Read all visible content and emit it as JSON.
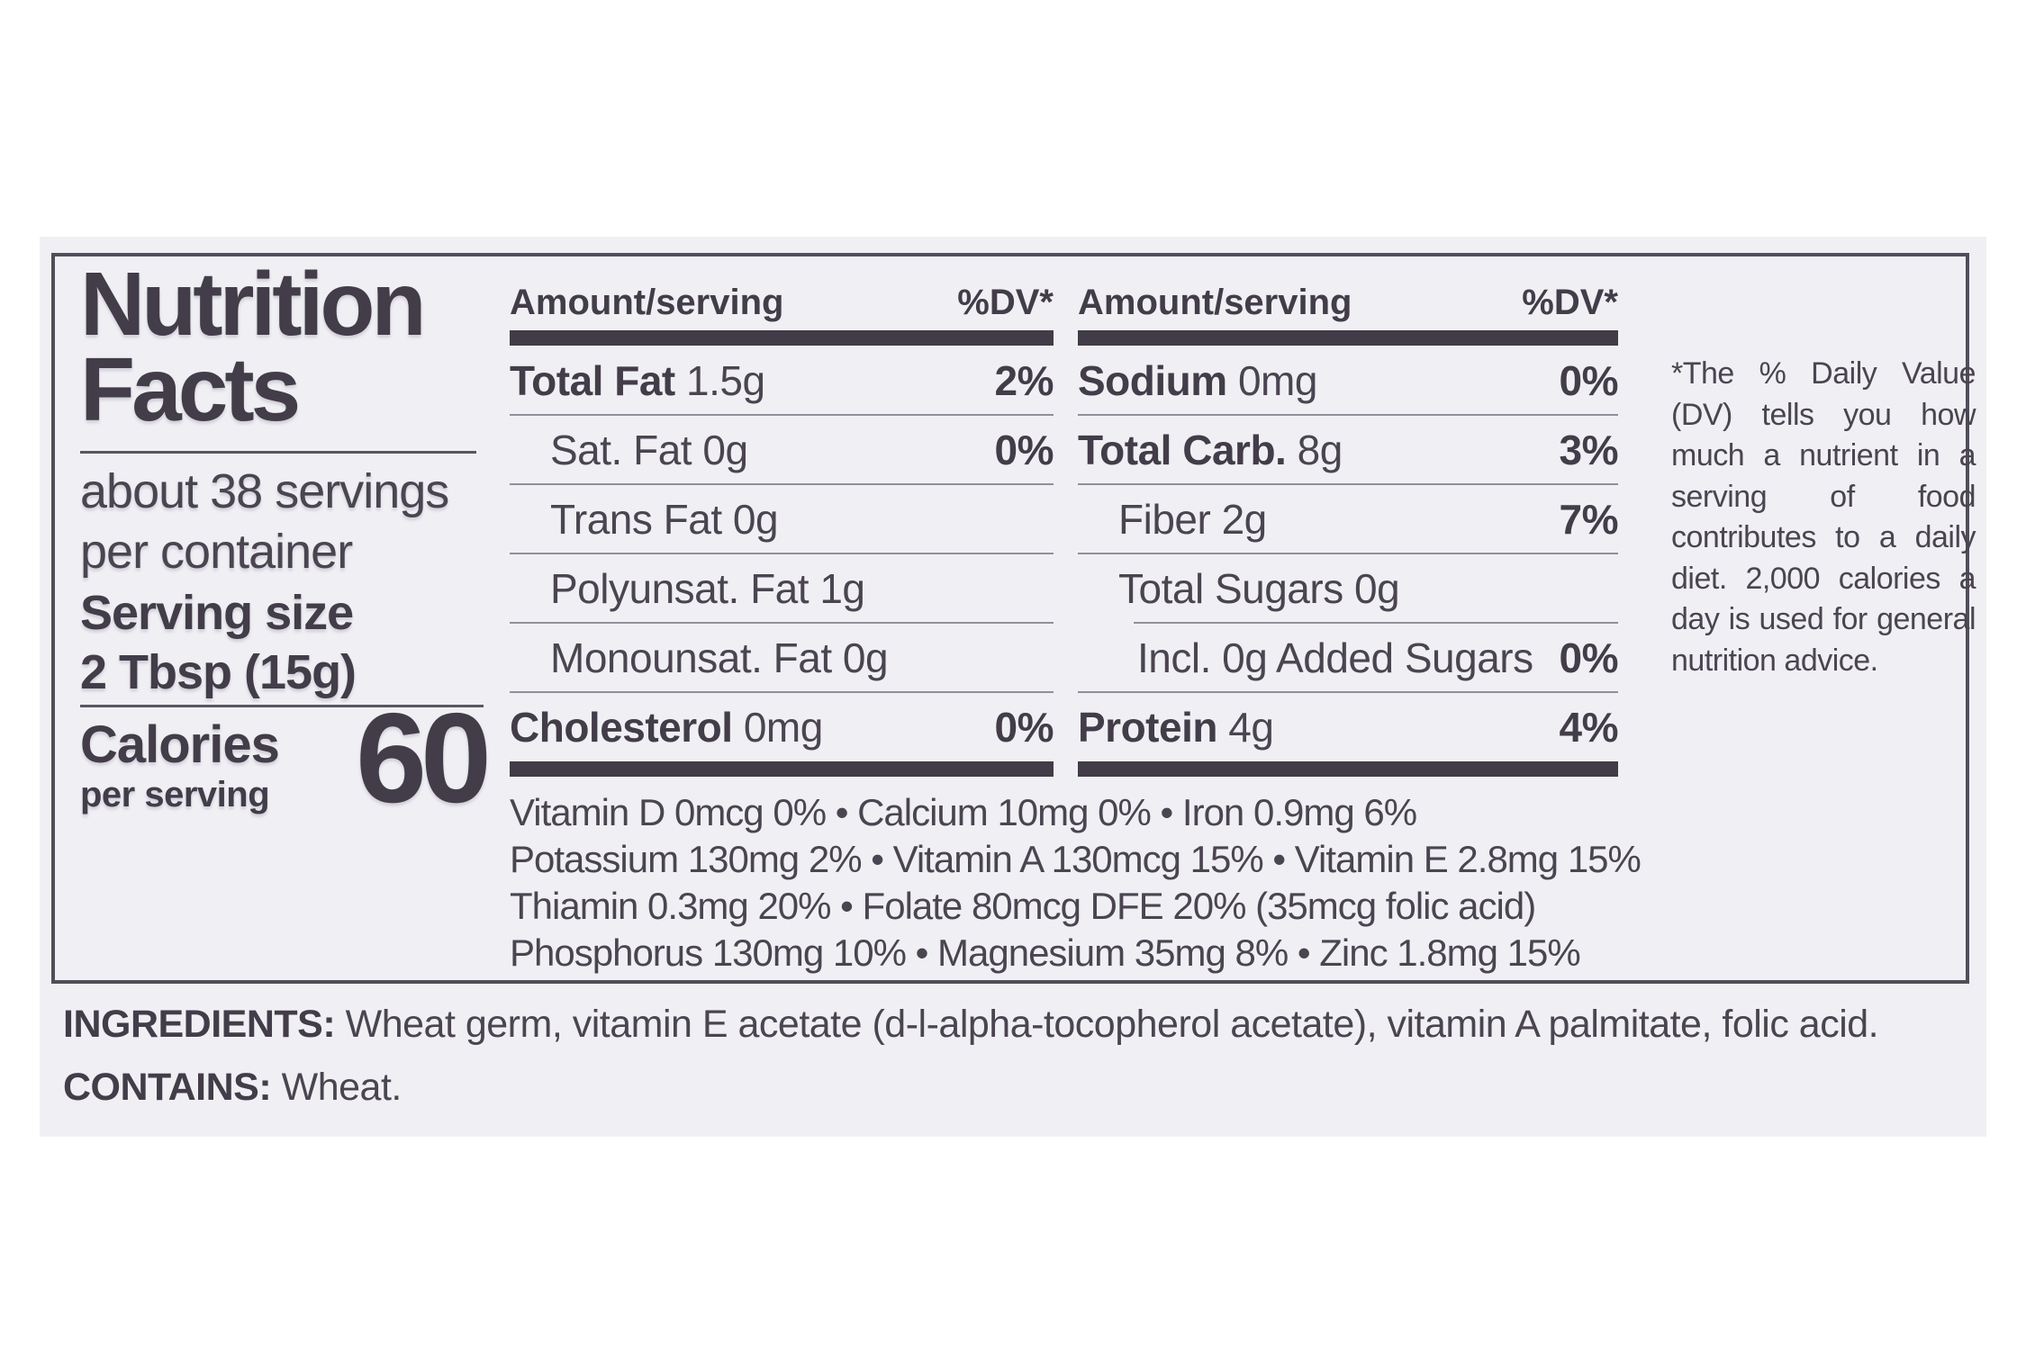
{
  "label": {
    "title": "Nutrition Facts",
    "servings": "about 38 servings per container",
    "serving_size_label": "Serving size",
    "serving_size_value": "2 Tbsp (15g)",
    "calories_label": "Calories",
    "calories_sublabel": "per serving",
    "calories_value": "60"
  },
  "columns": [
    {
      "header_amount": "Amount/serving",
      "header_dv": "%DV*",
      "rows": [
        {
          "name": "Total Fat",
          "amount": " 1.5g",
          "dv": "2%"
        },
        {
          "name": "Sat. Fat",
          "amount": " 0g",
          "dv": "0%"
        },
        {
          "name": "Trans Fat",
          "amount": " 0g",
          "dv": ""
        },
        {
          "name": "Polyunsat. Fat",
          "amount": " 1g",
          "dv": ""
        },
        {
          "name": "Monounsat. Fat",
          "amount": " 0g",
          "dv": ""
        },
        {
          "name": "Cholesterol",
          "amount": " 0mg",
          "dv": "0%"
        }
      ]
    },
    {
      "header_amount": "Amount/serving",
      "header_dv": "%DV*",
      "rows": [
        {
          "name": "Sodium",
          "amount": " 0mg",
          "dv": "0%"
        },
        {
          "name": "Total Carb.",
          "amount": " 8g",
          "dv": "3%"
        },
        {
          "name": "Fiber",
          "amount": " 2g",
          "dv": "7%"
        },
        {
          "name": "Total Sugars",
          "amount": " 0g",
          "dv": ""
        },
        {
          "name": "Incl. 0g Added Sugars",
          "amount": "",
          "dv": "0%"
        },
        {
          "name": "Protein",
          "amount": " 4g",
          "dv": "4%"
        }
      ]
    }
  ],
  "micronutrients": [
    "Vitamin D 0mcg 0% • Calcium 10mg 0% • Iron 0.9mg 6%",
    "Potassium 130mg 2% • Vitamin A 130mcg 15% • Vitamin E 2.8mg 15%",
    "Thiamin 0.3mg 20% • Folate 80mcg DFE 20% (35mcg folic acid)",
    "Phosphorus 130mg 10% • Magnesium 35mg 8% • Zinc 1.8mg 15%"
  ],
  "footnote": "*The % Daily Value (DV) tells you how much a nutrient in a serving of food contributes to a daily diet. 2,000 calories a day is used for general nutrition advice.",
  "ingredients": {
    "label": "INGREDIENTS:",
    "text": " Wheat germ, vitamin E acetate (d-l-alpha-tocopherol acetate), vitamin A palmitate, folic acid."
  },
  "contains": {
    "label": "CONTAINS:",
    "text": " Wheat."
  }
}
